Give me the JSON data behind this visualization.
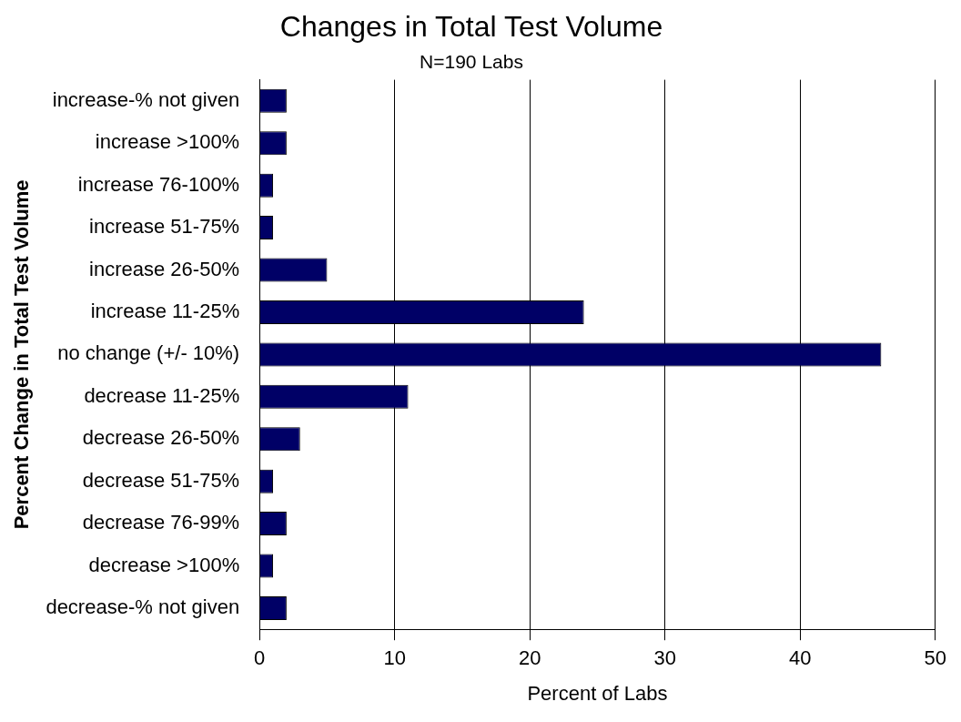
{
  "chart_data": {
    "type": "bar",
    "orientation": "horizontal",
    "title": "Changes in Total Test Volume",
    "subtitle": "N=190 Labs",
    "xlabel": "Percent of Labs",
    "ylabel": "Percent Change in Total Test Volume",
    "categories": [
      "increase-% not given",
      "increase >100%",
      "increase 76-100%",
      "increase 51-75%",
      "increase 26-50%",
      "increase 11-25%",
      "no change (+/- 10%)",
      "decrease 11-25%",
      "decrease 26-50%",
      "decrease 51-75%",
      "decrease 76-99%",
      "decrease >100%",
      "decrease-% not given"
    ],
    "values": [
      2,
      2,
      1,
      1,
      5,
      24,
      46,
      11,
      3,
      1,
      2,
      1,
      2
    ],
    "color": "#000066",
    "xlim": [
      0,
      50
    ],
    "xticks": [
      0,
      10,
      20,
      30,
      40,
      50
    ],
    "grid": "x",
    "legend": false
  }
}
